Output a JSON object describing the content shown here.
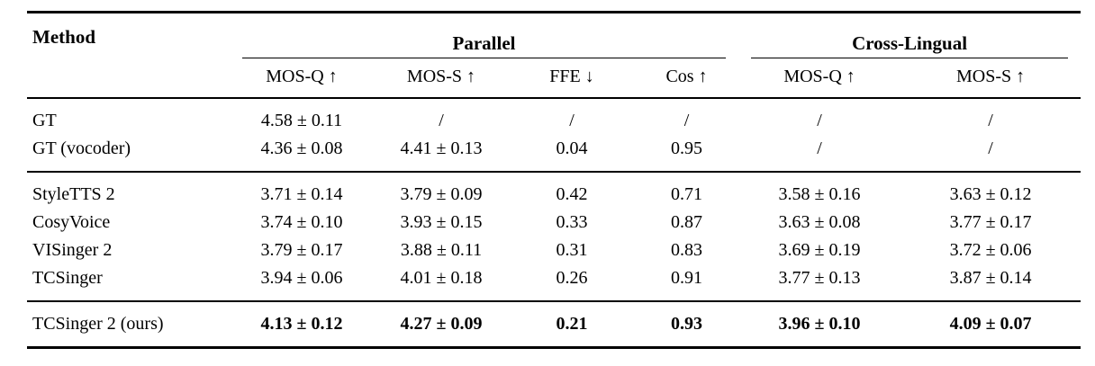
{
  "table": {
    "method_header": "Method",
    "groups": [
      {
        "label": "Parallel"
      },
      {
        "label": "Cross-Lingual"
      }
    ],
    "metric_headers": [
      "MOS-Q ↑",
      "MOS-S ↑",
      "FFE ↓",
      "Cos ↑",
      "MOS-Q ↑",
      "MOS-S ↑"
    ],
    "sections": [
      {
        "rows": [
          {
            "method": "GT",
            "values": [
              "4.58 ± 0.11",
              "/",
              "/",
              "/",
              "/",
              "/"
            ]
          },
          {
            "method": "GT (vocoder)",
            "values": [
              "4.36 ± 0.08",
              "4.41 ± 0.13",
              "0.04",
              "0.95",
              "/",
              "/"
            ]
          }
        ]
      },
      {
        "rows": [
          {
            "method": "StyleTTS 2",
            "values": [
              "3.71 ± 0.14",
              "3.79 ± 0.09",
              "0.42",
              "0.71",
              "3.58 ± 0.16",
              "3.63 ± 0.12"
            ]
          },
          {
            "method": "CosyVoice",
            "values": [
              "3.74 ± 0.10",
              "3.93 ± 0.15",
              "0.33",
              "0.87",
              "3.63 ± 0.08",
              "3.77 ± 0.17"
            ]
          },
          {
            "method": "VISinger 2",
            "values": [
              "3.79 ± 0.17",
              "3.88 ± 0.11",
              "0.31",
              "0.83",
              "3.69 ± 0.19",
              "3.72 ± 0.06"
            ]
          },
          {
            "method": "TCSinger",
            "values": [
              "3.94 ± 0.06",
              "4.01 ± 0.18",
              "0.26",
              "0.91",
              "3.77 ± 0.13",
              "3.87 ± 0.14"
            ]
          }
        ]
      },
      {
        "rows": [
          {
            "method": "TCSinger 2 (ours)",
            "values": [
              "4.13 ± 0.12",
              "4.27 ± 0.09",
              "0.21",
              "0.93",
              "3.96 ± 0.10",
              "4.09 ± 0.07"
            ]
          }
        ]
      }
    ]
  },
  "colors": {
    "text": "#000000",
    "background": "#ffffff",
    "rule": "#000000"
  }
}
